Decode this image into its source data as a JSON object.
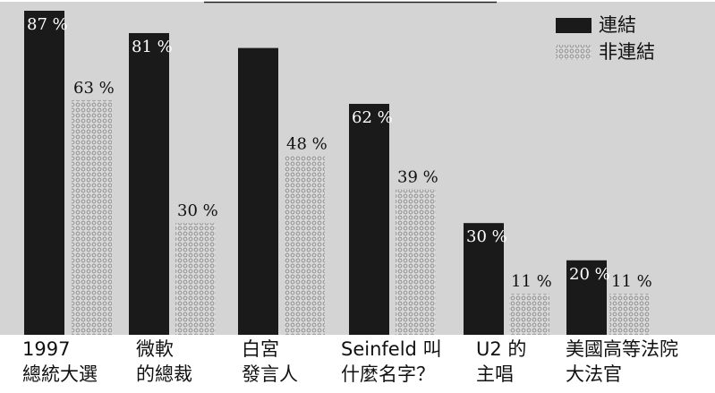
{
  "chart_data": {
    "type": "bar",
    "categories": [
      [
        "1997",
        "總統大選"
      ],
      [
        "微軟",
        "的總裁"
      ],
      [
        "白宮",
        "發言人"
      ],
      [
        "Seinfeld 叫",
        "什麼名字？"
      ],
      [
        "U2 的",
        "主唱"
      ],
      [
        "美國高等法院",
        "大法官"
      ]
    ],
    "series": [
      {
        "name": "連結",
        "values": [
          87,
          81,
          null,
          62,
          30,
          20
        ],
        "labels": [
          "87 %",
          "81 %",
          "",
          "62 %",
          "30 %",
          "20 %"
        ],
        "color": "#1a1a1a"
      },
      {
        "name": "非連結",
        "values": [
          63,
          30,
          48,
          39,
          11,
          11
        ],
        "labels": [
          "63 %",
          "30 %",
          "48 %",
          "39 %",
          "11 %",
          "11 %"
        ],
        "color": "#c8c8c8"
      }
    ],
    "ylim": [
      0,
      100
    ],
    "legend": "top-right",
    "grid": false,
    "background": "#d4d4d4"
  }
}
